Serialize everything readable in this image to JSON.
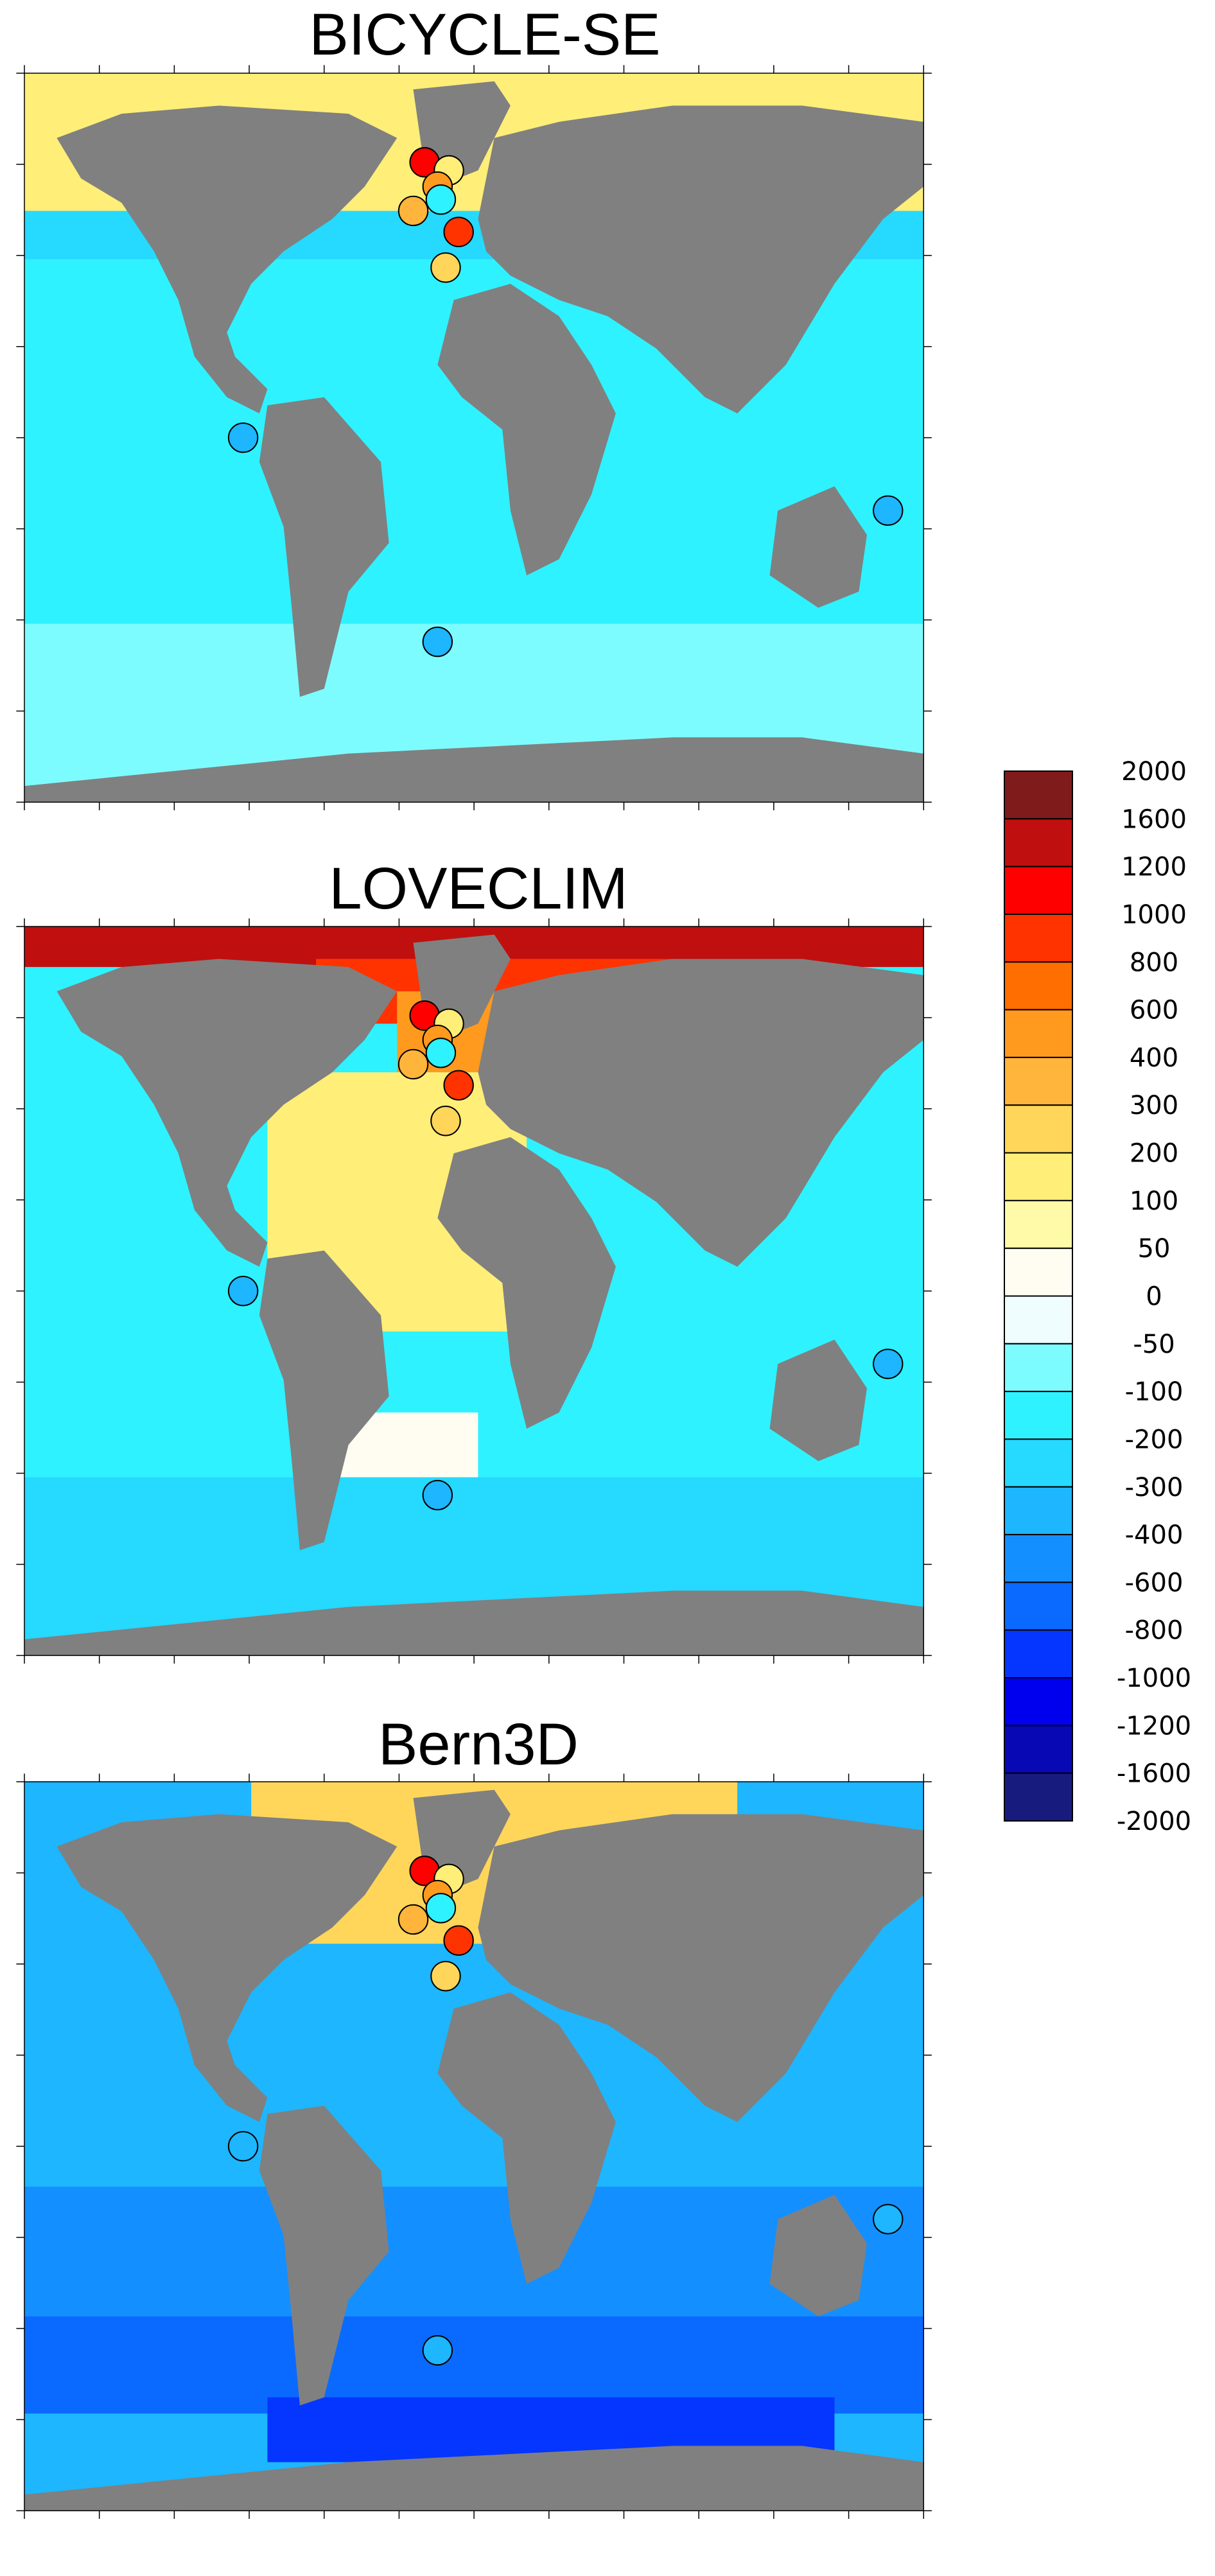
{
  "panels": [
    {
      "title": "BICYCLE-SE"
    },
    {
      "title": "LOVECLIM"
    },
    {
      "title": "Bern3D"
    }
  ],
  "colorbar": {
    "labels": [
      2000,
      1600,
      1200,
      1000,
      800,
      600,
      400,
      300,
      200,
      100,
      50,
      0,
      -50,
      -100,
      -200,
      -300,
      -400,
      -600,
      -800,
      -1000,
      -1200,
      -1600,
      -2000
    ],
    "colors": [
      "#7f1b1b",
      "#c00f0f",
      "#ff0000",
      "#ff3300",
      "#ff6e00",
      "#ff9a1f",
      "#ffb43c",
      "#ffd65a",
      "#ffee78",
      "#fffaa8",
      "#fffdf2",
      "#f0fdff",
      "#7dfcff",
      "#2ef2ff",
      "#25d9ff",
      "#1db6ff",
      "#148fff",
      "#0a6aff",
      "#0436ff",
      "#0000ee",
      "#0808b4",
      "#181b7e"
    ]
  }
}
